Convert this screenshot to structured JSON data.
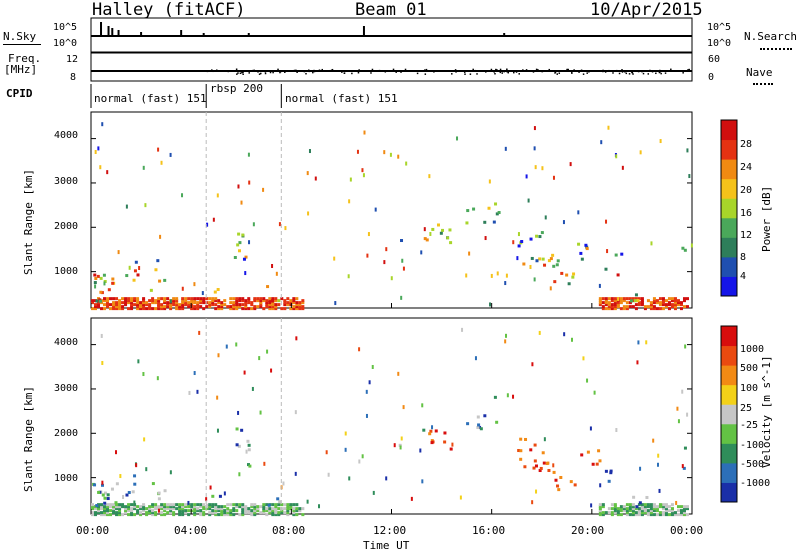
{
  "header": {
    "station": "Halley (fitACF)",
    "beam": "Beam 01",
    "date": "10/Apr/2015"
  },
  "top_panels": {
    "nsky_label": "N.Sky",
    "nsky_ticks": [
      "10^5",
      "10^0"
    ],
    "nsearch_label": "N.Search",
    "nsearch_ticks": [
      "10^5",
      "10^0"
    ],
    "freq_label": "Freq.",
    "freq_unit": "[MHz]",
    "freq_ticks": [
      "12",
      "8"
    ],
    "nave_label": "Nave",
    "nave_ticks": [
      "60",
      "0"
    ],
    "cpid_label": "CPID",
    "cpid_segments": [
      {
        "label": "normal (fast) 151",
        "start_h": 0,
        "end_h": 4.6
      },
      {
        "label": "rbsp 200",
        "start_h": 4.6,
        "end_h": 7.6
      },
      {
        "label": "normal (fast) 151",
        "start_h": 7.6,
        "end_h": 24
      }
    ]
  },
  "chart_data": [
    {
      "type": "heatmap",
      "name": "power",
      "ylabel": "Slant Range [km]",
      "yticks": [
        "4000",
        "3000",
        "2000",
        "1000"
      ],
      "ylim": [
        180,
        4600
      ],
      "xlim": [
        0,
        24
      ],
      "colorbar_label": "Power [dB]",
      "colorbar_ticks": [
        "28",
        "24",
        "20",
        "16",
        "12",
        "8",
        "4"
      ],
      "colors": [
        "#1515e8",
        "#1f4fb0",
        "#2e7e5a",
        "#4aa85a",
        "#a8d52a",
        "#f5c21a",
        "#f08a12",
        "#e43212",
        "#d10f0f"
      ]
    },
    {
      "type": "heatmap",
      "name": "velocity",
      "ylabel": "Slant Range [km]",
      "yticks": [
        "4000",
        "3000",
        "2000",
        "1000"
      ],
      "ylim": [
        180,
        4600
      ],
      "xlim": [
        0,
        24
      ],
      "colorbar_label": "Velocity [m s^-1]",
      "colorbar_ticks": [
        "1000",
        "500",
        "100",
        "25",
        "-25",
        "-100",
        "-500",
        "-1000"
      ],
      "colors": [
        "#1a2fa8",
        "#2c6fb8",
        "#2f8d5a",
        "#63c244",
        "#c6c6c6",
        "#f3d118",
        "#f28a14",
        "#ea4a10",
        "#d80d0d"
      ]
    }
  ],
  "x_axis": {
    "label": "Time UT",
    "ticks": [
      "00:00",
      "04:00",
      "08:00",
      "12:00",
      "16:00",
      "20:00",
      "00:00"
    ]
  }
}
